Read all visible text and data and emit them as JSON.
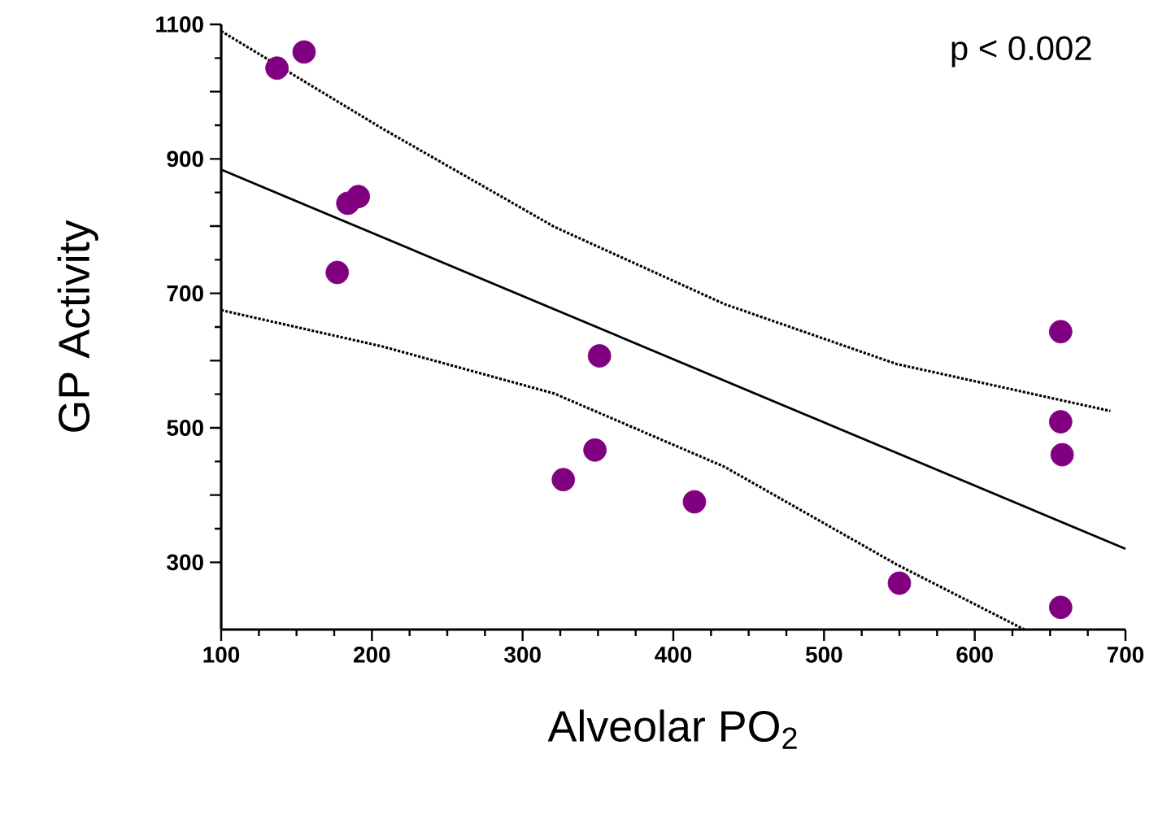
{
  "chart_data": {
    "type": "scatter",
    "xlabel": "Alveolar PO$_{2}$",
    "ylabel": "GP Activity",
    "annotations": [
      "p < 0.002"
    ],
    "xlim": [
      100,
      700
    ],
    "ylim": [
      200,
      1100
    ],
    "xticks": [
      100,
      200,
      300,
      400,
      500,
      600,
      700
    ],
    "yticks": [
      300,
      {
        "value": 400,
        "label": null
      },
      500,
      {
        "value": 600,
        "label": null
      },
      700,
      {
        "value": 800,
        "label": null
      },
      900,
      {
        "value": 1000,
        "label": null
      },
      1100
    ],
    "grid": false,
    "series": [
      {
        "color": "#800080",
        "marker": "circle",
        "x": [
          137,
          155,
          177,
          184,
          191,
          327,
          348,
          351,
          414,
          550,
          657,
          657,
          658,
          657
        ],
        "values": [
          1035,
          1059,
          731,
          834,
          844,
          423,
          467,
          607,
          390,
          269,
          643,
          509,
          460,
          233
        ]
      },
      {
        "type": "line",
        "color": "#000000",
        "marker": "none",
        "line_style": "solid",
        "x": [
          100,
          700
        ],
        "values": [
          884,
          320
        ]
      },
      {
        "type": "line",
        "color": "#000000",
        "marker": "none",
        "line_style": "dotted",
        "x": [
          100,
          207,
          321,
          434,
          548,
          690
        ],
        "values": [
          1090,
          945,
          799,
          684,
          595,
          525
        ]
      },
      {
        "type": "line",
        "color": "#000000",
        "marker": "none",
        "line_style": "dotted",
        "x": [
          100,
          207,
          321,
          434,
          548,
          633
        ],
        "values": [
          675,
          621,
          551,
          442,
          297,
          200
        ]
      }
    ]
  }
}
